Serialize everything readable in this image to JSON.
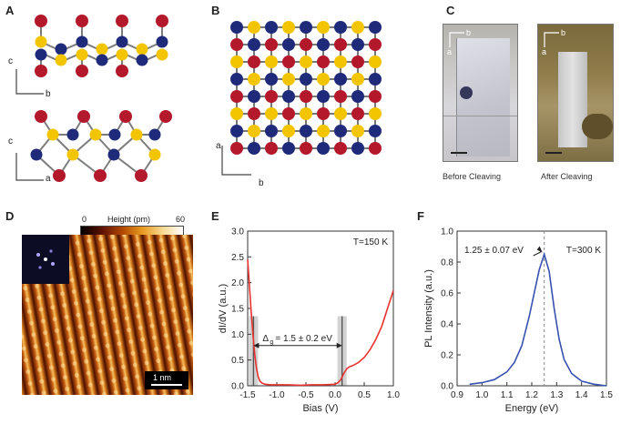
{
  "panels": {
    "A": {
      "letter": "A",
      "axis_top_vertical": "c",
      "axis_top_horizontal": "b",
      "axis_bottom_vertical": "c",
      "axis_bottom_horizontal": "a"
    },
    "B": {
      "letter": "B",
      "axis_vertical": "a",
      "axis_horizontal": "b"
    },
    "C": {
      "letter": "C",
      "left_axis_h": "b",
      "left_axis_v": "a",
      "right_axis_h": "b",
      "right_axis_v": "a",
      "caption_before": "Before Cleaving",
      "caption_after": "After Cleaving"
    },
    "D": {
      "letter": "D",
      "colorbar_min": "0",
      "colorbar_label": "Height (pm)",
      "colorbar_max": "60",
      "scalebar": "1 nm"
    },
    "E": {
      "letter": "E"
    },
    "F": {
      "letter": "F"
    }
  },
  "colors": {
    "red_atom": "#b3182b",
    "blue_atom": "#1f2a7a",
    "yellow_atom": "#f2c500",
    "curve_e": "#e8332e",
    "curve_f": "#3850b0"
  },
  "chart_data": [
    {
      "type": "line",
      "panel": "E",
      "xlabel": "Bias (V)",
      "ylabel": "dI/dV (a.u.)",
      "xlim": [
        -1.5,
        1.0
      ],
      "ylim": [
        0.0,
        3.0
      ],
      "xticks": [
        "-1.5",
        "-1.0",
        "-0.5",
        "0.0",
        "0.5",
        "1.0"
      ],
      "yticks": [
        "0.0",
        "0.5",
        "1.0",
        "1.5",
        "2.0",
        "2.5",
        "3.0"
      ],
      "annotation_temp": "T=150 K",
      "annotation_gap_prefix": "Δ",
      "annotation_gap_sub": "g",
      "annotation_gap_value": "= 1.5 ± 0.2 eV",
      "gap_edges": [
        -1.4,
        0.12
      ],
      "series": [
        {
          "x": [
            -1.5,
            -1.47,
            -1.44,
            -1.41,
            -1.38,
            -1.35,
            -1.32,
            -1.29,
            -1.25,
            -1.2,
            -1.1,
            -1.0,
            -0.8,
            -0.6,
            -0.4,
            -0.2,
            0.0,
            0.05,
            0.1,
            0.15,
            0.2,
            0.25,
            0.3,
            0.4,
            0.5,
            0.6,
            0.7,
            0.8,
            0.9,
            1.0
          ],
          "y": [
            2.45,
            1.95,
            1.45,
            1.0,
            0.62,
            0.35,
            0.18,
            0.09,
            0.05,
            0.03,
            0.02,
            0.02,
            0.02,
            0.01,
            0.02,
            0.02,
            0.03,
            0.06,
            0.12,
            0.24,
            0.33,
            0.37,
            0.39,
            0.45,
            0.55,
            0.7,
            0.9,
            1.15,
            1.5,
            1.85
          ]
        }
      ]
    },
    {
      "type": "line",
      "panel": "F",
      "xlabel": "Energy (eV)",
      "ylabel": "PL Intensity (a.u.)",
      "xlim": [
        0.9,
        1.5
      ],
      "ylim": [
        0.0,
        1.0
      ],
      "xticks": [
        "0.9",
        "1.0",
        "1.1",
        "1.2",
        "1.3",
        "1.4",
        "1.5"
      ],
      "yticks": [
        "0.0",
        "0.2",
        "0.4",
        "0.6",
        "0.8",
        "1.0"
      ],
      "annotation_temp": "T=300 K",
      "annotation_peak": "1.25 ± 0.07 eV",
      "peak_x": 1.25,
      "series": [
        {
          "x": [
            0.95,
            1.0,
            1.05,
            1.1,
            1.13,
            1.16,
            1.19,
            1.21,
            1.23,
            1.25,
            1.27,
            1.29,
            1.31,
            1.33,
            1.36,
            1.4,
            1.45,
            1.5
          ],
          "y": [
            0.01,
            0.02,
            0.04,
            0.09,
            0.15,
            0.26,
            0.45,
            0.6,
            0.75,
            0.85,
            0.74,
            0.5,
            0.3,
            0.17,
            0.08,
            0.03,
            0.01,
            0.0
          ]
        }
      ]
    }
  ]
}
